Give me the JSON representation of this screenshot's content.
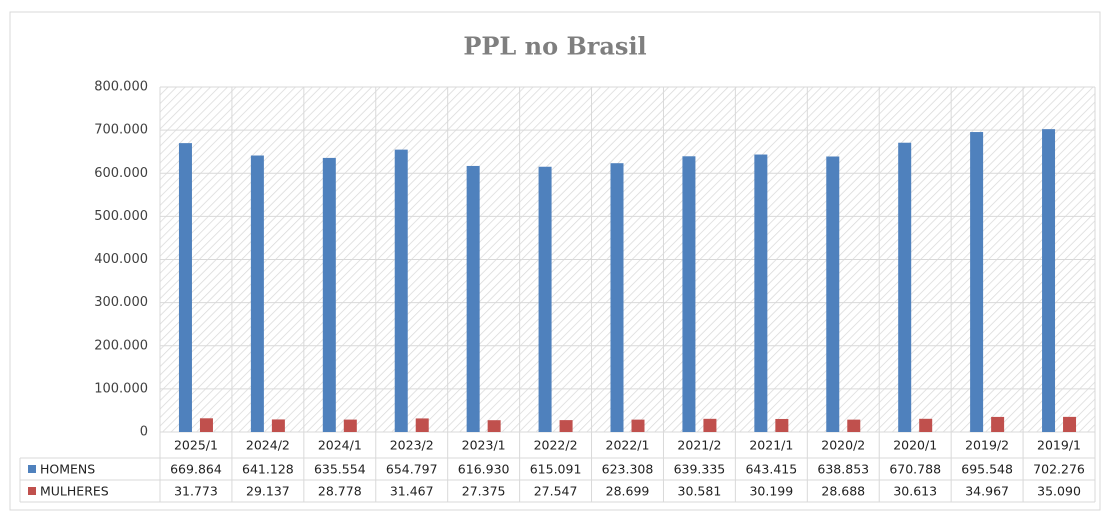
{
  "chart_data": {
    "type": "bar",
    "title": "PPL no Brasil",
    "categories": [
      "2025/1",
      "2024/2",
      "2024/1",
      "2023/2",
      "2023/1",
      "2022/2",
      "2022/1",
      "2021/2",
      "2021/1",
      "2020/2",
      "2020/1",
      "2019/2",
      "2019/1"
    ],
    "series": [
      {
        "name": "HOMENS",
        "color": "#4f81bd",
        "values": [
          669864,
          641128,
          635554,
          654797,
          616930,
          615091,
          623308,
          639335,
          643415,
          638853,
          670788,
          695548,
          702276
        ],
        "value_labels": [
          "669.864",
          "641.128",
          "635.554",
          "654.797",
          "616.930",
          "615.091",
          "623.308",
          "639.335",
          "643.415",
          "638.853",
          "670.788",
          "695.548",
          "702.276"
        ]
      },
      {
        "name": "MULHERES",
        "color": "#c0504d",
        "values": [
          31773,
          29137,
          28778,
          31467,
          27375,
          27547,
          28699,
          30581,
          30199,
          28688,
          30613,
          34967,
          35090
        ],
        "value_labels": [
          "31.773",
          "29.137",
          "28.778",
          "31.467",
          "27.375",
          "27.547",
          "28.699",
          "30.581",
          "30.199",
          "28.688",
          "30.613",
          "34.967",
          "35.090"
        ]
      }
    ],
    "ylim": [
      0,
      800000
    ],
    "yticks": [
      0,
      {
        "value": 100000,
        "label": "100.000"
      },
      {
        "value": 200000,
        "label": "200.000"
      },
      {
        "value": 300000,
        "label": "300.000"
      },
      {
        "value": 400000,
        "label": "400.000"
      },
      {
        "value": 500000,
        "label": "500.000"
      },
      {
        "value": 600000,
        "label": "600.000"
      },
      {
        "value": 700000,
        "label": "700.000"
      },
      {
        "value": 800000,
        "label": "800.000"
      }
    ],
    "grid": true,
    "data_table": true
  }
}
